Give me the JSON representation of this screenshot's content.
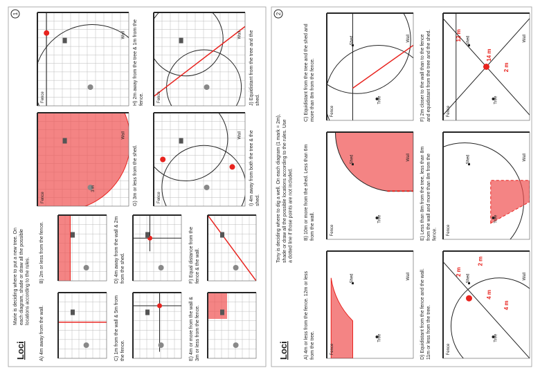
{
  "pages": [
    {
      "number": "1",
      "title": "Loci",
      "instructions": "Marie is deciding where to put a new tree. On each diagram, shade or draw all the possible locations according to the rules.",
      "questions": [
        {
          "text": "A) 4m away from the wall."
        },
        {
          "text": "B) 2m or less from the fence."
        },
        {
          "text": "C) 1m from the wall & 5m from the fence."
        },
        {
          "text": "D) 4m away from the wall & 2m from the shed."
        },
        {
          "text": "E) 4m or more from the wall & 3m or less from the fence."
        },
        {
          "text": "F) Equal distance from the fence & the wall."
        },
        {
          "text": "G) 3m or less from the shed.",
          "notes": [
            "Fence",
            "Wall",
            "3 m"
          ]
        },
        {
          "text": "H) 2m away from the tree & 1m from the fence.",
          "notes": [
            "Fence",
            "Wall"
          ]
        },
        {
          "text": "I) 4m away from both the tree & the shed.",
          "notes": [
            "Fence",
            "Wall"
          ]
        },
        {
          "text": "J) Equidistant from the tree and the shed.",
          "notes": [
            "Fence",
            "Wall"
          ]
        }
      ]
    },
    {
      "number": "2",
      "title": "Loci",
      "instructions": "Tony is deciding where to dig a well. On each diagram (1 mark = 2m), shade or draw all the possible locations according to the rules. Use a dotted line if those points are not included.",
      "questions": [
        {
          "text": "A) 4m or less from the fence. 12m or less from the tree.",
          "notes": [
            "Fence",
            "Wall",
            "Tree",
            "Shed"
          ]
        },
        {
          "text": "B) 10m or more from the shed. Less than 6m from the wall.",
          "notes": [
            "Fence",
            "Wall",
            "Tree",
            "Shed"
          ]
        },
        {
          "text": "C) Equidistant from the tree and the shed and more than 8m from the fence.",
          "notes": [
            "Fence",
            "Wall",
            "Tree",
            "Shed"
          ]
        },
        {
          "text": "D) Equidistant from the fence and the wall. 11m or less from the tree.",
          "notes": [
            "Fence",
            "Wall",
            "Tree",
            "Shed",
            "4 m",
            "2 m",
            "4 m",
            "2 m"
          ]
        },
        {
          "text": "E) Less than 8m from the tree, less than 8m from the wall and more than 8m from the fence.",
          "notes": [
            "Fence",
            "Wall",
            "Tree",
            "Shed"
          ]
        },
        {
          "text": "F) 2m closer to the wall than to the fence and equidistant from the tree and the shed.",
          "notes": [
            "Fence",
            "Wall",
            "Tree",
            "Shed",
            "14 m",
            "12 m",
            "2 m"
          ]
        }
      ]
    }
  ]
}
